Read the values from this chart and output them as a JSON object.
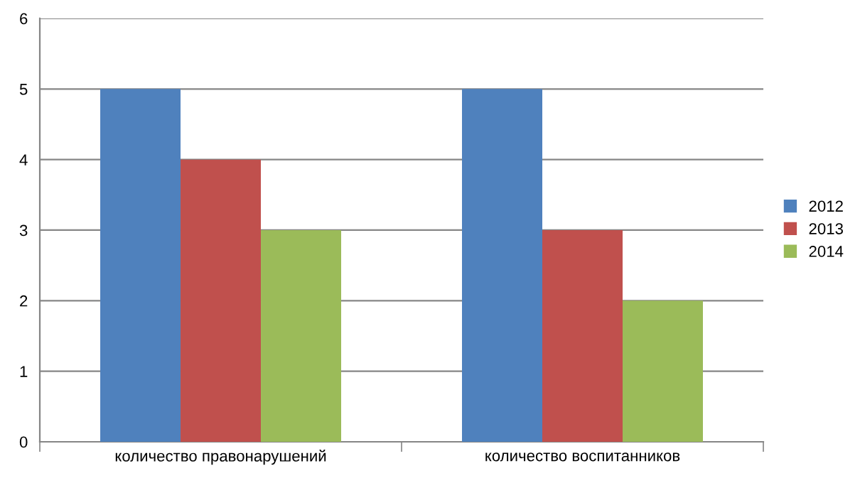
{
  "chart_data": {
    "type": "bar",
    "categories": [
      "количество правонарушений",
      "количество воспитанников"
    ],
    "series": [
      {
        "name": "2012",
        "color": "#4f81bd",
        "values": [
          5,
          5
        ]
      },
      {
        "name": "2013",
        "color": "#c0504d",
        "values": [
          4,
          3
        ]
      },
      {
        "name": "2014",
        "color": "#9bbb59",
        "values": [
          3,
          2
        ]
      }
    ],
    "ylim": [
      0,
      6
    ],
    "yticks": [
      0,
      1,
      2,
      3,
      4,
      5,
      6
    ],
    "grid": "y",
    "legend": "right"
  }
}
